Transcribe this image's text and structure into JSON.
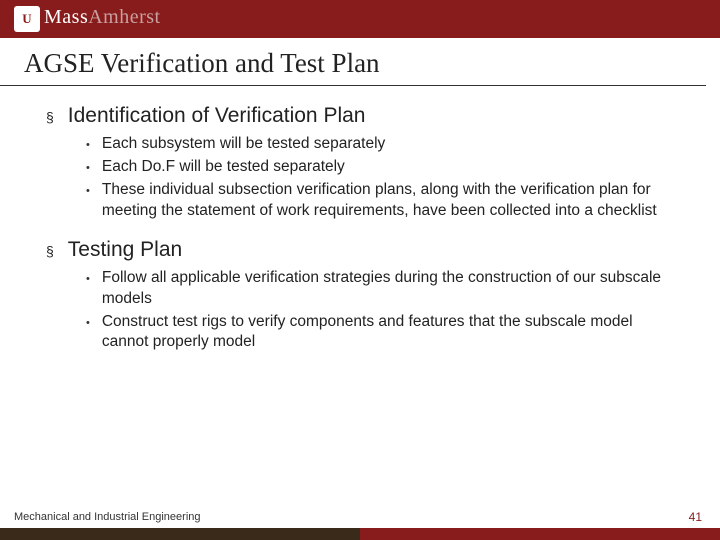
{
  "header": {
    "logo_badge": "U",
    "logo_text1": "Mass",
    "logo_text2": "Amherst"
  },
  "title": "AGSE Verification and Test Plan",
  "sections": [
    {
      "heading": "Identification of Verification Plan",
      "items": [
        "Each subsystem will be tested separately",
        "Each Do.F will be tested separately",
        "These individual subsection verification plans, along with the verification plan for meeting the statement of work requirements, have been collected into a checklist"
      ]
    },
    {
      "heading": "Testing Plan",
      "items": [
        "Follow all applicable verification strategies during the construction of our subscale models",
        "Construct test rigs to verify components and features that the subscale model cannot properly model"
      ]
    }
  ],
  "footer": {
    "dept": "Mechanical and Industrial Engineering",
    "page": "41"
  },
  "colors": {
    "brand_red": "#881c1c",
    "brand_dark": "#3a2a1a",
    "text": "#222222"
  }
}
